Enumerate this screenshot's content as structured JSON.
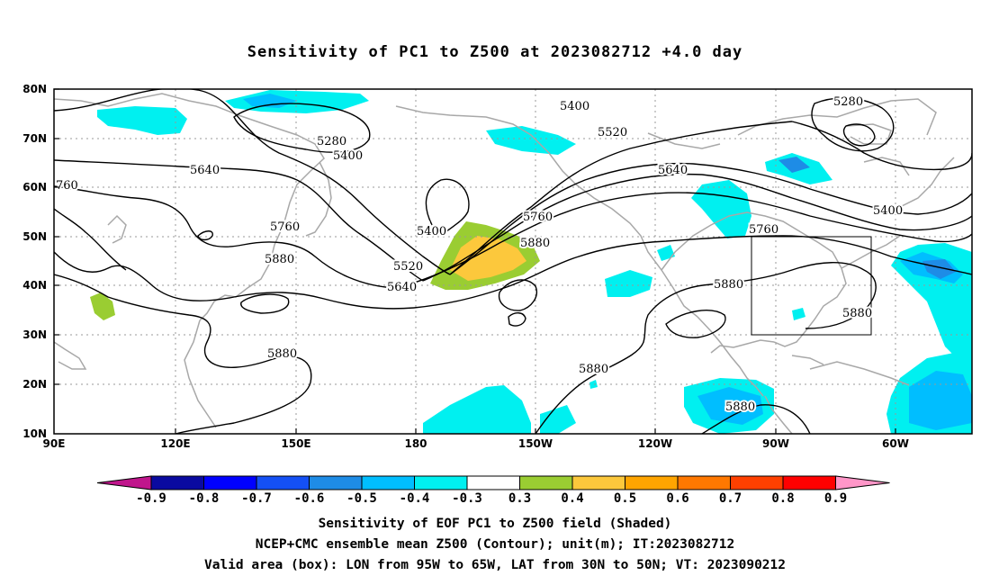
{
  "title": "Sensitivity of PC1 to Z500 at 2023082712 +4.0 day",
  "lat_labels": [
    "80N",
    "70N",
    "60N",
    "50N",
    "40N",
    "30N",
    "20N",
    "10N"
  ],
  "lon_labels": [
    "90E",
    "120E",
    "150E",
    "180",
    "150W",
    "120W",
    "90W",
    "60W"
  ],
  "contour_labels": [
    "5280",
    "5280",
    "5400",
    "5400",
    "5400",
    "5400",
    "5520",
    "5520",
    "5640",
    "5640",
    "5640",
    "760",
    "5760",
    "5760",
    "5760",
    "5880",
    "5880",
    "5880",
    "5880",
    "5880",
    "5880",
    "5880"
  ],
  "colorbar": {
    "labels": [
      "-0.9",
      "-0.8",
      "-0.7",
      "-0.6",
      "-0.5",
      "-0.4",
      "-0.3",
      "0.3",
      "0.4",
      "0.5",
      "0.6",
      "0.7",
      "0.8",
      "0.9"
    ],
    "colors": [
      "#c0168c",
      "#0a0aa0",
      "#0000ff",
      "#1450f5",
      "#1e8ce6",
      "#00beff",
      "#00f0f0",
      "#ffffff",
      "#9acd32",
      "#fcc83c",
      "#ffa500",
      "#ff7800",
      "#ff4000",
      "#ff0000",
      "#ff96c8"
    ]
  },
  "caption": {
    "line1": "Sensitivity of EOF PC1 to Z500 field (Shaded)",
    "line2": "NCEP+CMC ensemble mean Z500 (Contour); unit(m); IT:2023082712",
    "line3": "Valid area (box): LON from 95W to 65W, LAT from 30N to 50N; VT: 2023090212"
  }
}
